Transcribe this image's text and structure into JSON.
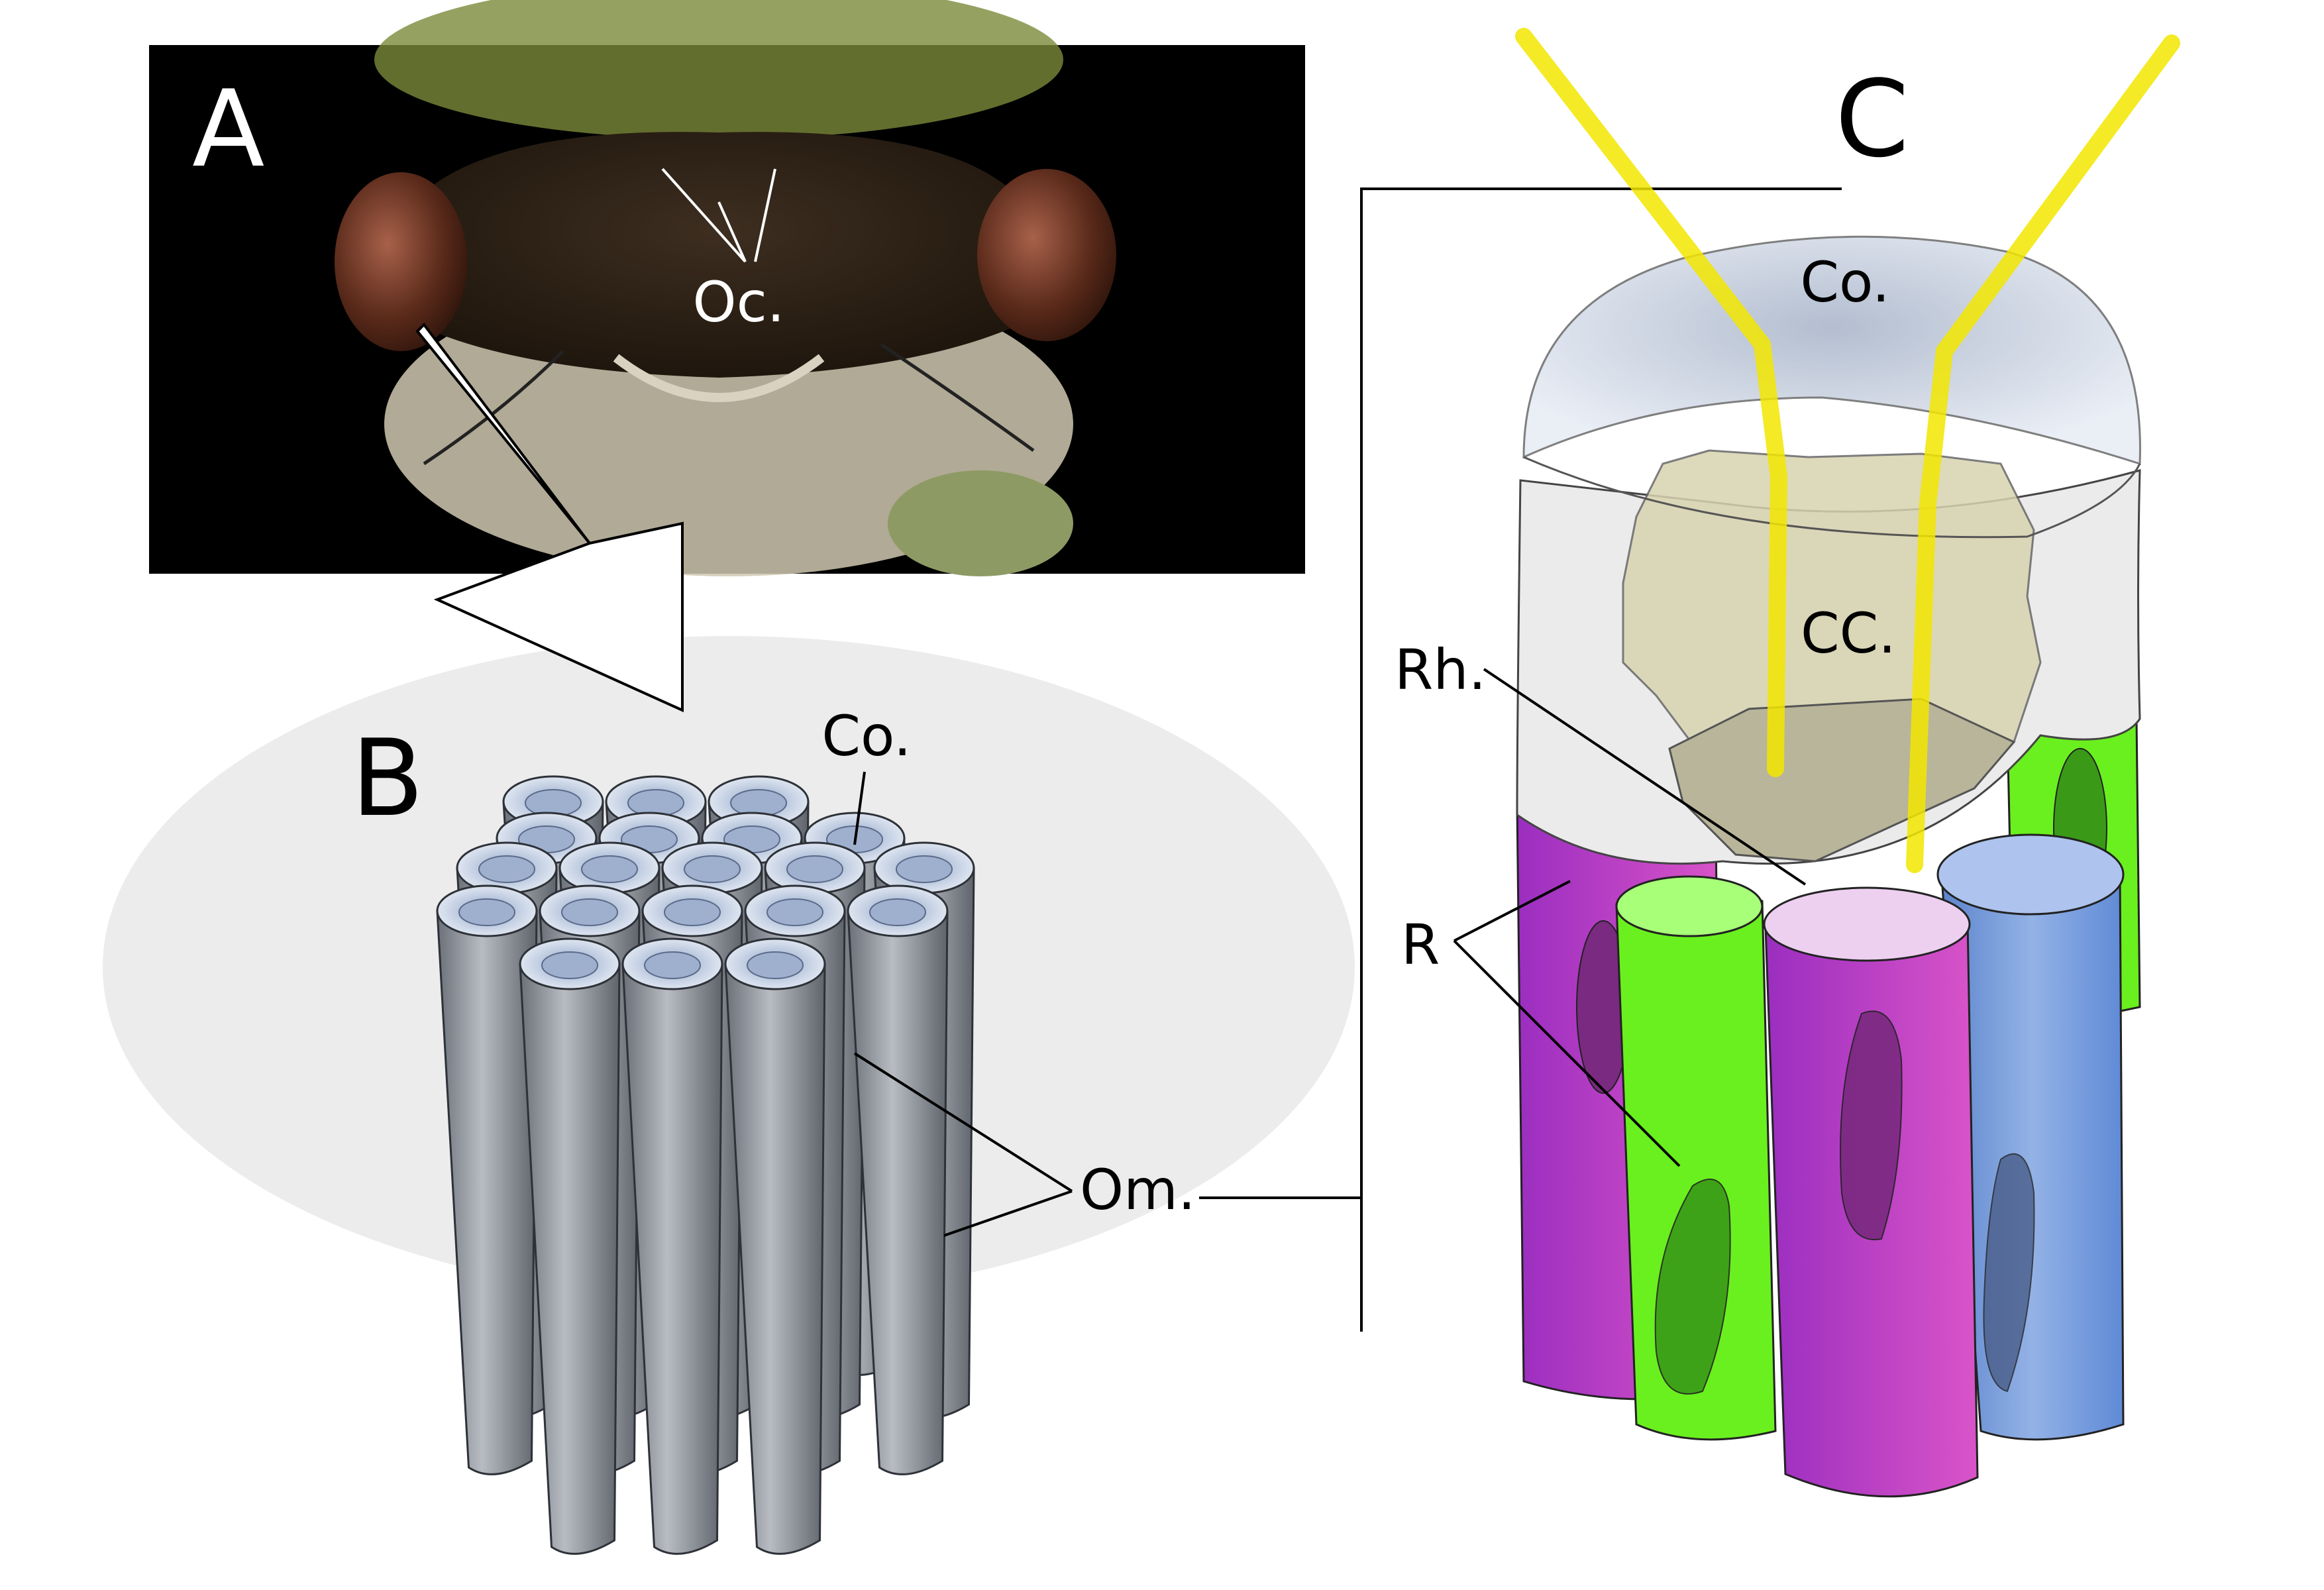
{
  "panels": {
    "a": {
      "letter": "A"
    },
    "b": {
      "letter": "B"
    },
    "c": {
      "letter": "C"
    }
  },
  "labels": {
    "ocelli": "Oc.",
    "cornea_b": "Co.",
    "ommatidia": "Om.",
    "cornea_c": "Co.",
    "crystalline_cone": "CC.",
    "rhabdom": "Rh.",
    "retinula": "R"
  },
  "colors": {
    "axon": "#f2e600",
    "retinula_magenta": "#c03dc6",
    "retinula_green": "#6af01e",
    "retinula_blue": "#6f97dc",
    "ommatidium_gray": "#8a8f97",
    "cornea_blue": "#c6d0e4",
    "background_oval": "#ececec",
    "photo_background": "#000000"
  },
  "icons": [
    "cicada-head-photo",
    "zoom-arrow-icon"
  ]
}
